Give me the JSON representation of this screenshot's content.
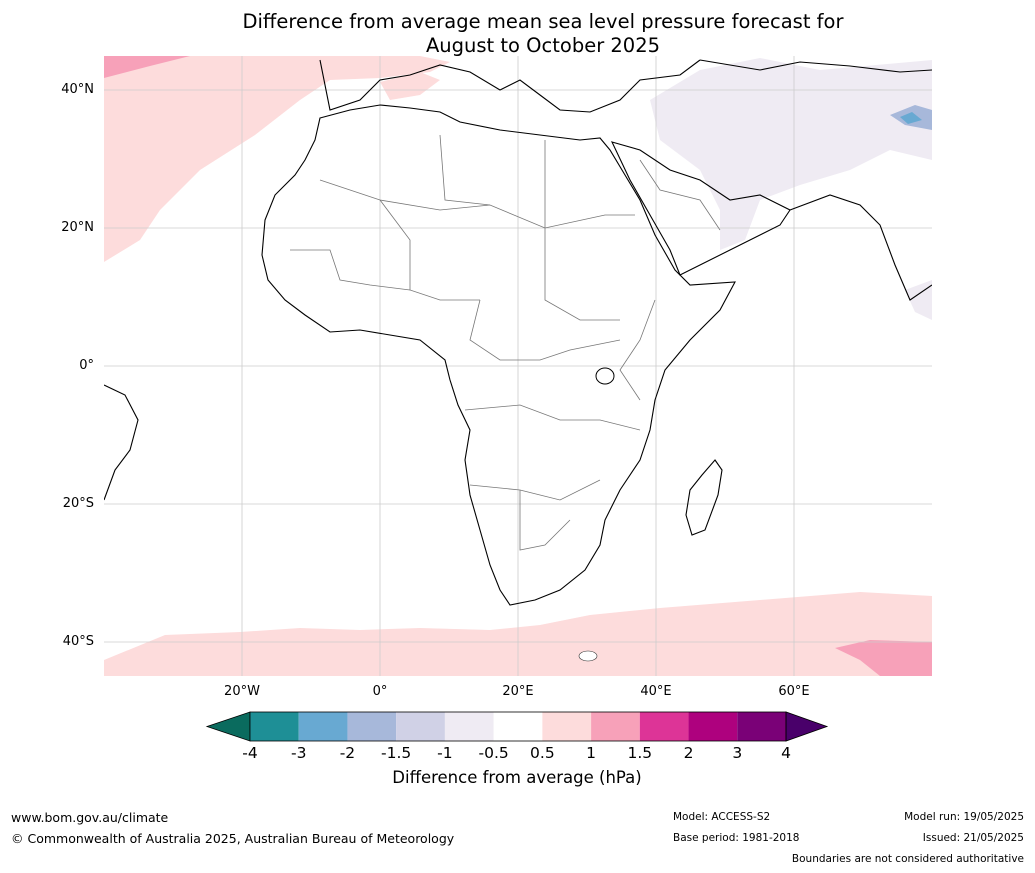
{
  "title": {
    "line1": "Difference from average mean sea level pressure forecast for",
    "line2": "August to October 2025"
  },
  "map": {
    "lat_labels": [
      "40°N",
      "20°N",
      "0°",
      "20°S",
      "40°S"
    ],
    "lon_labels": [
      "20°W",
      "0°",
      "20°E",
      "40°E",
      "60°E"
    ],
    "extent": {
      "lon": [
        -40,
        80
      ],
      "lat": [
        -45,
        45
      ]
    },
    "gridlines": true
  },
  "colorbar": {
    "ticks": [
      "-4",
      "-3",
      "-2",
      "-1.5",
      "-1",
      "-0.5",
      "0.5",
      "1",
      "1.5",
      "2",
      "3",
      "4"
    ],
    "colors": [
      "#0a6b5e",
      "#1e8f96",
      "#68a9d2",
      "#a7b8da",
      "#d0d1e6",
      "#efebf3",
      "#ffffff",
      "#fddcdc",
      "#f7a1b9",
      "#dd3497",
      "#ae017e",
      "#7a0177",
      "#49006a"
    ],
    "label": "Difference from average (hPa)"
  },
  "footer": {
    "website": "www.bom.gov.au/climate",
    "copyright": "© Commonwealth of Australia 2025, Australian Bureau of Meteorology",
    "model": "Model: ACCESS-S2",
    "base_period": "Base period: 1981-2018",
    "model_run": "Model run: 19/05/2025",
    "issued": "Issued: 21/05/2025",
    "disclaimer": "Boundaries are not considered authoritative"
  }
}
